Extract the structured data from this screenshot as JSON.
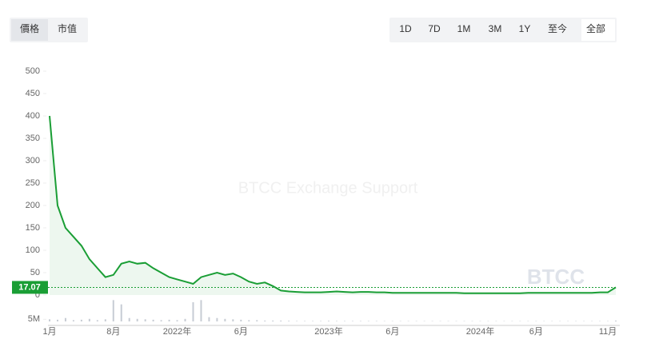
{
  "controls": {
    "tabs": [
      "價格",
      "市值"
    ],
    "ranges": [
      "1D",
      "7D",
      "1M",
      "3M",
      "1Y",
      "至今",
      "全部"
    ]
  },
  "chart_data": {
    "type": "line",
    "watermark": "BTCC Exchange Support",
    "logo": "BTCC",
    "categories": [
      "1月",
      null,
      null,
      null,
      null,
      null,
      null,
      null,
      "8月",
      null,
      null,
      null,
      null,
      null,
      null,
      null,
      "2022年",
      null,
      null,
      null,
      null,
      null,
      null,
      null,
      "6月",
      null,
      null,
      null,
      null,
      null,
      null,
      null,
      null,
      null,
      null,
      "2023年",
      null,
      null,
      null,
      null,
      null,
      null,
      null,
      "6月",
      null,
      null,
      null,
      null,
      null,
      null,
      null,
      null,
      null,
      null,
      "2024年",
      null,
      null,
      null,
      null,
      null,
      null,
      "6月",
      null,
      null,
      null,
      null,
      null,
      null,
      null,
      null,
      "11月",
      null
    ],
    "series": [
      {
        "name": "價格",
        "color": "#1a9e35",
        "values": [
          400,
          200,
          150,
          130,
          110,
          80,
          60,
          40,
          45,
          70,
          75,
          70,
          72,
          60,
          50,
          40,
          35,
          30,
          25,
          40,
          45,
          50,
          45,
          48,
          40,
          30,
          25,
          28,
          20,
          10,
          8,
          7,
          6,
          6,
          6,
          7,
          8,
          7,
          6,
          7,
          7,
          6,
          6,
          5,
          5,
          5,
          5,
          5,
          5,
          5,
          5,
          5,
          4,
          4,
          4,
          4,
          4,
          4,
          4,
          4,
          5,
          5,
          5,
          5,
          5,
          5,
          5,
          5,
          5,
          6,
          6,
          17.07
        ]
      }
    ],
    "volume": {
      "color": "#c7ccd4",
      "values": [
        5000000,
        4000000,
        8000000,
        3000000,
        4000000,
        6000000,
        3000000,
        5000000,
        50000000,
        40000000,
        8000000,
        6000000,
        5000000,
        4000000,
        3000000,
        4000000,
        3000000,
        6000000,
        45000000,
        50000000,
        10000000,
        8000000,
        6000000,
        5000000,
        4000000,
        3000000,
        3000000,
        2000000,
        2000000,
        2000000,
        1500000,
        1000000,
        1000000,
        1000000,
        1000000,
        1500000,
        1000000,
        1000000,
        1000000,
        1000000,
        1000000,
        1000000,
        800000,
        800000,
        800000,
        800000,
        800000,
        800000,
        800000,
        800000,
        800000,
        800000,
        800000,
        800000,
        800000,
        800000,
        800000,
        800000,
        800000,
        800000,
        800000,
        800000,
        800000,
        800000,
        800000,
        800000,
        800000,
        800000,
        800000,
        800000,
        800000,
        2000000
      ],
      "ylim": [
        0,
        60000000
      ],
      "yticks": [
        {
          "value": 5000000,
          "label": "5M"
        }
      ]
    },
    "ylim": [
      0,
      500
    ],
    "yticks": [
      0,
      50,
      100,
      150,
      200,
      250,
      300,
      350,
      400,
      450,
      500
    ]
  }
}
